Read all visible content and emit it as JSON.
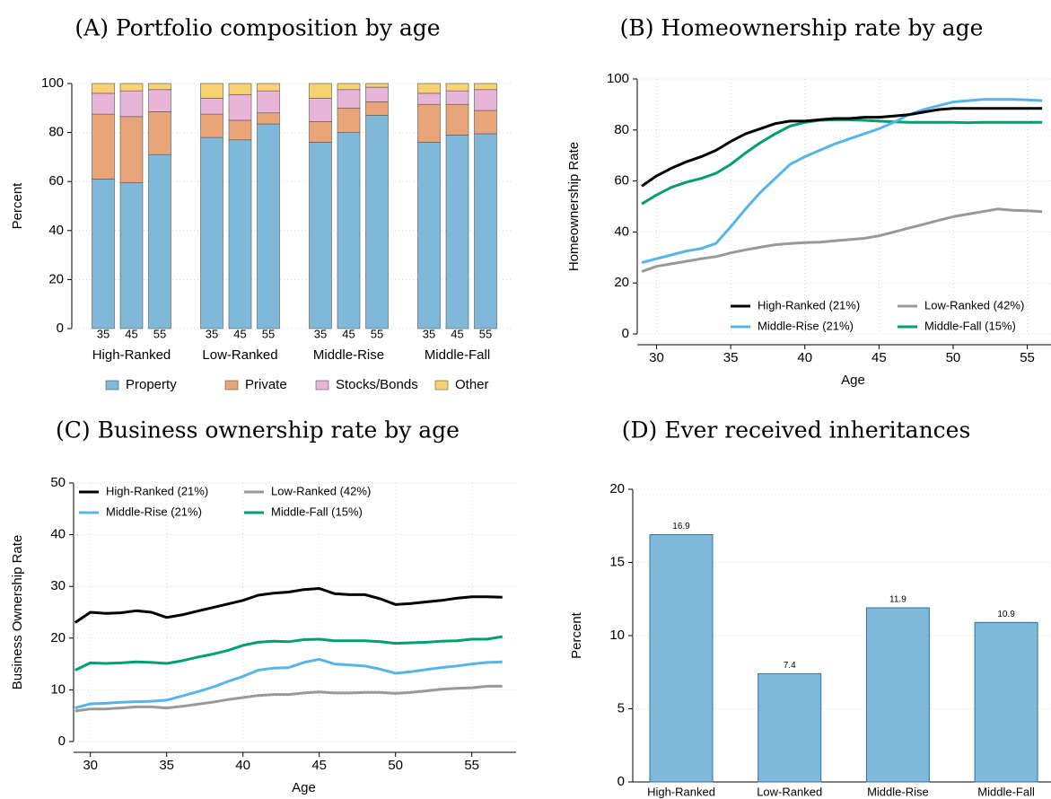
{
  "chart_data": [
    {
      "type": "stacked_bar",
      "title": "(A) Portfolio composition by age",
      "ylabel": "Percent",
      "groups": [
        "High-Ranked",
        "Low-Ranked",
        "Middle-Rise",
        "Middle-Fall"
      ],
      "categories": [
        "35",
        "45",
        "55",
        "35",
        "45",
        "55",
        "35",
        "45",
        "55",
        "35",
        "45",
        "55"
      ],
      "series": [
        {
          "name": "Property",
          "color": "#7fb8d9",
          "values": [
            61,
            59.5,
            71,
            78,
            77,
            83.5,
            76,
            80,
            87,
            76,
            79,
            79.5
          ]
        },
        {
          "name": "Private",
          "color": "#e8a57a",
          "values": [
            26.5,
            27,
            17.5,
            9.5,
            8,
            4.5,
            8.5,
            10,
            5.5,
            15.5,
            12.5,
            9.5
          ]
        },
        {
          "name": "Stocks/Bonds",
          "color": "#e8b4d8",
          "values": [
            8.5,
            10.5,
            9,
            6.5,
            10.5,
            9,
            9.5,
            7.5,
            6,
            4.5,
            5.5,
            8.5
          ]
        },
        {
          "name": "Other",
          "color": "#f8d170",
          "values": [
            4,
            3,
            2.5,
            6,
            4.5,
            3,
            6,
            2.5,
            1.5,
            4,
            3,
            2.5
          ]
        }
      ],
      "ylim": [
        0,
        100
      ],
      "yticks": [
        0,
        20,
        40,
        60,
        80,
        100
      ],
      "grid": true,
      "legend": "bottom"
    },
    {
      "type": "line",
      "title": "(B) Homeownership rate by age",
      "xlabel": "Age",
      "ylabel": "Homeownership Rate",
      "x": [
        29,
        30,
        31,
        32,
        33,
        34,
        35,
        36,
        37,
        38,
        39,
        40,
        41,
        42,
        43,
        44,
        45,
        46,
        47,
        48,
        49,
        50,
        51,
        52,
        53,
        54,
        55,
        56
      ],
      "series": [
        {
          "name": "High-Ranked (21%)",
          "color": "#000000",
          "values": [
            58,
            62,
            65,
            67.5,
            69.5,
            72,
            75.5,
            78.5,
            80.5,
            82.5,
            83.5,
            83.5,
            84,
            84.5,
            84.5,
            85,
            85,
            85.5,
            86,
            87,
            88,
            88.5,
            88.5,
            88.5,
            88.5,
            88.5,
            88.5,
            88.5
          ]
        },
        {
          "name": "Low-Ranked (42%)",
          "color": "#999999",
          "values": [
            24.5,
            26.5,
            27.5,
            28.5,
            29.5,
            30.3,
            31.8,
            33,
            34,
            35,
            35.5,
            35.8,
            36,
            36.5,
            37,
            37.5,
            38.5,
            40,
            41.5,
            43,
            44.5,
            46,
            47,
            48,
            49,
            48.5,
            48.3,
            48
          ]
        },
        {
          "name": "Middle-Rise (21%)",
          "color": "#56b4e9",
          "values": [
            28,
            29.5,
            31,
            32.5,
            33.5,
            35.5,
            42,
            49,
            55.5,
            61,
            66.5,
            69.5,
            72,
            74.5,
            76.5,
            78.5,
            80.5,
            83,
            86,
            88,
            89.5,
            91,
            91.5,
            92,
            92,
            92,
            91.8,
            91.5
          ]
        },
        {
          "name": "Middle-Fall (15%)",
          "color": "#009e73",
          "values": [
            51,
            54.5,
            57.5,
            59.5,
            61,
            63,
            66.5,
            71,
            75,
            78.5,
            81.5,
            83,
            83.8,
            84,
            84,
            83.8,
            83.5,
            83.2,
            83,
            83,
            83,
            83,
            82.8,
            83,
            83,
            83,
            83,
            83
          ]
        }
      ],
      "xlim": [
        28.7,
        56.6
      ],
      "xticks": [
        30,
        35,
        40,
        45,
        50,
        55
      ],
      "ylim": [
        0,
        100
      ],
      "yticks": [
        0,
        20,
        40,
        60,
        80,
        100
      ],
      "grid": true,
      "legend": "lower right"
    },
    {
      "type": "line",
      "title": "(C) Business ownership rate by age",
      "xlabel": "Age",
      "ylabel": "Business Ownership Rate",
      "x": [
        29,
        30,
        31,
        32,
        33,
        34,
        35,
        36,
        37,
        38,
        39,
        40,
        41,
        42,
        43,
        44,
        45,
        46,
        47,
        48,
        49,
        50,
        51,
        52,
        53,
        54,
        55,
        56,
        57
      ],
      "series": [
        {
          "name": "High-Ranked (21%)",
          "color": "#000000",
          "values": [
            23,
            25,
            24.8,
            24.9,
            25.3,
            25,
            24,
            24.5,
            25.2,
            25.9,
            26.6,
            27.3,
            28.3,
            28.7,
            28.9,
            29.4,
            29.6,
            28.6,
            28.4,
            28.4,
            27.6,
            26.5,
            26.7,
            27,
            27.3,
            27.7,
            28,
            28,
            27.9
          ]
        },
        {
          "name": "Low-Ranked (42%)",
          "color": "#999999",
          "values": [
            5.9,
            6.3,
            6.3,
            6.5,
            6.7,
            6.7,
            6.5,
            6.8,
            7.2,
            7.6,
            8.1,
            8.5,
            8.9,
            9.1,
            9.1,
            9.4,
            9.6,
            9.4,
            9.4,
            9.5,
            9.5,
            9.3,
            9.5,
            9.8,
            10.1,
            10.3,
            10.4,
            10.7,
            10.7
          ]
        },
        {
          "name": "Middle-Rise (21%)",
          "color": "#56b4e9",
          "values": [
            6.5,
            7.3,
            7.4,
            7.6,
            7.7,
            7.8,
            8,
            8.8,
            9.6,
            10.5,
            11.6,
            12.6,
            13.8,
            14.2,
            14.3,
            15.3,
            15.9,
            15,
            14.8,
            14.6,
            14,
            13.2,
            13.5,
            13.9,
            14.3,
            14.6,
            15,
            15.3,
            15.4
          ]
        },
        {
          "name": "Middle-Fall (15%)",
          "color": "#009e73",
          "values": [
            13.8,
            15.2,
            15.1,
            15.2,
            15.4,
            15.3,
            15.1,
            15.6,
            16.3,
            16.9,
            17.6,
            18.6,
            19.2,
            19.4,
            19.3,
            19.7,
            19.8,
            19.5,
            19.5,
            19.5,
            19.3,
            19,
            19.1,
            19.2,
            19.4,
            19.5,
            19.8,
            19.8,
            20.3
          ]
        }
      ],
      "xlim": [
        28.9,
        57.9
      ],
      "xticks": [
        30,
        35,
        40,
        45,
        50,
        55
      ],
      "ylim": [
        0,
        50
      ],
      "yticks": [
        0,
        10,
        20,
        30,
        40,
        50
      ],
      "grid": true,
      "legend": "upper left"
    },
    {
      "type": "bar",
      "title": "(D) Ever received inheritances",
      "ylabel": "Percent",
      "categories": [
        "High-Ranked",
        "Low-Ranked",
        "Middle-Rise",
        "Middle-Fall"
      ],
      "values": [
        16.9,
        7.4,
        11.9,
        10.9
      ],
      "color": "#7fb8d9",
      "data_labels": true,
      "ylim": [
        0,
        20
      ],
      "yticks": [
        0,
        5,
        10,
        15,
        20
      ],
      "grid": true
    }
  ]
}
